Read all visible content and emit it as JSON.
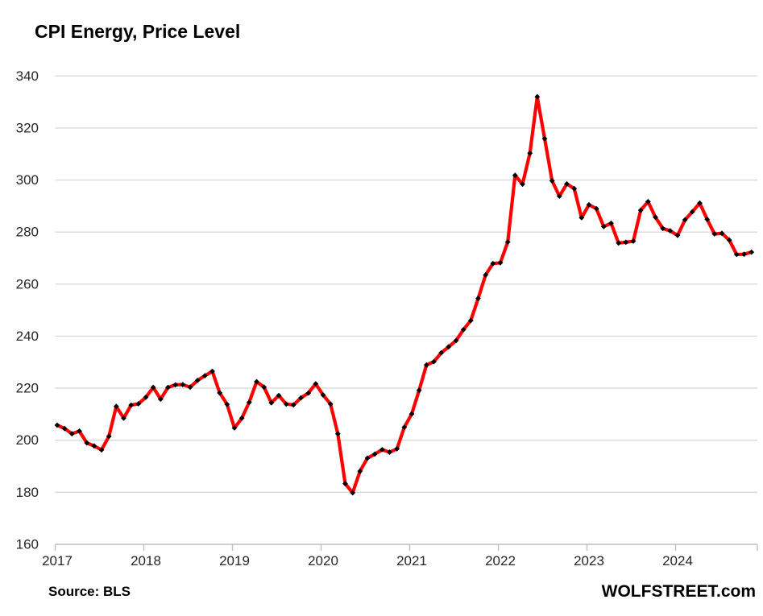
{
  "title": "CPI Energy, Price Level",
  "source_label": "Source: BLS",
  "brand": "WOLFSTREET.com",
  "chart_data": {
    "type": "line",
    "title": "CPI Energy, Price Level",
    "frequency": "monthly",
    "x_start": "2017-01",
    "x_end": "2024-11",
    "x_tick_labels": [
      "2017",
      "2018",
      "2019",
      "2020",
      "2021",
      "2022",
      "2023",
      "2024"
    ],
    "y_ticks": [
      160,
      180,
      200,
      220,
      240,
      260,
      280,
      300,
      320,
      340
    ],
    "ylim": [
      160,
      340
    ],
    "grid": "horizontal",
    "legend": "none",
    "line_color": "#ff0000",
    "marker_color": "#000000",
    "gridline_color": "#d9d9d9",
    "axis_color": "#bfbfbf",
    "tick_label_color": "#262626",
    "series": [
      {
        "name": "CPI Energy price level",
        "values": [
          205.8,
          204.5,
          202.5,
          203.5,
          199.0,
          197.8,
          196.3,
          201.5,
          213.0,
          208.5,
          213.5,
          214.0,
          216.5,
          220.3,
          215.8,
          220.3,
          221.3,
          221.4,
          220.4,
          223.0,
          224.8,
          226.5,
          218.2,
          213.8,
          204.7,
          208.5,
          214.6,
          222.5,
          220.4,
          214.4,
          217.2,
          213.9,
          213.6,
          216.3,
          218.1,
          221.7,
          217.4,
          213.9,
          202.5,
          183.3,
          179.8,
          188.1,
          193.1,
          194.7,
          196.4,
          195.4,
          196.7,
          205.0,
          210.1,
          219.2,
          228.9,
          230.2,
          233.6,
          235.9,
          238.3,
          242.5,
          246.0,
          254.5,
          263.5,
          267.9,
          268.2,
          276.2,
          301.8,
          298.4,
          310.3,
          332.0,
          315.9,
          299.7,
          293.8,
          298.5,
          296.7,
          285.5,
          290.5,
          289.0,
          282.1,
          283.4,
          275.8,
          276.1,
          276.5,
          288.4,
          291.7,
          285.7,
          281.4,
          280.5,
          278.7,
          284.7,
          287.8,
          291.1,
          284.9,
          279.3,
          279.5,
          276.9,
          271.4,
          271.5,
          272.3
        ]
      }
    ]
  }
}
